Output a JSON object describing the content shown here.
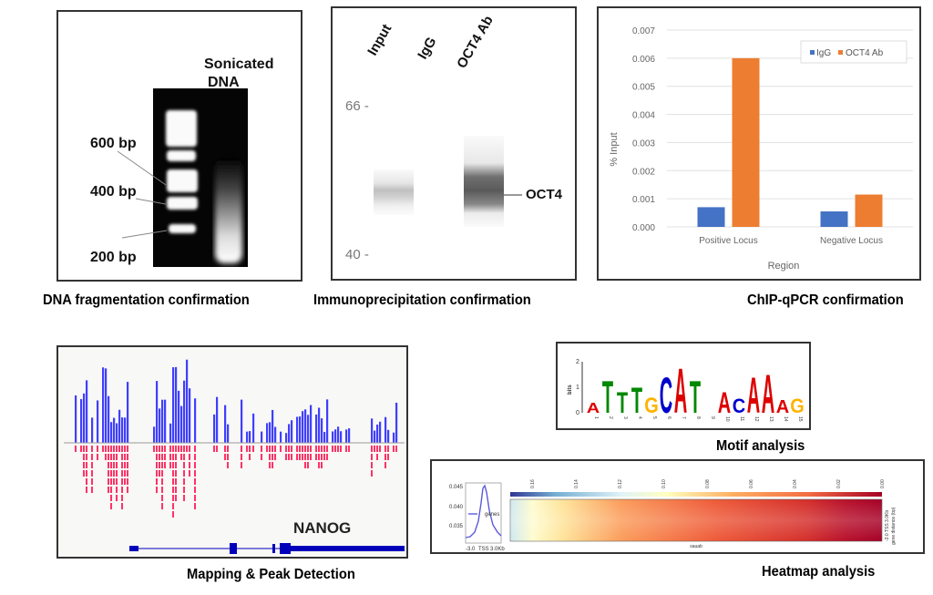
{
  "panels": {
    "dna_fragmentation": {
      "caption": "DNA fragmentation confirmation",
      "lane_label_line1": "Sonicated",
      "lane_label_line2": "DNA",
      "markers": [
        "600 bp",
        "400 bp",
        "200 bp"
      ]
    },
    "immunoprecipitation": {
      "caption": "Immunoprecipitation confirmation",
      "lanes": [
        "Input",
        "IgG",
        "OCT4 Ab"
      ],
      "mw_markers": [
        "66",
        "40"
      ],
      "band_label": "OCT4"
    },
    "chip_qpcr": {
      "caption": "ChIP-qPCR confirmation"
    },
    "mapping": {
      "caption": "Mapping & Peak Detection",
      "gene_label": "NANOG"
    },
    "motif": {
      "caption": "Motif analysis",
      "y_label": "bits",
      "y_ticks": [
        "0",
        "1",
        "2"
      ],
      "positions": [
        "1",
        "2",
        "3",
        "4",
        "5",
        "6",
        "7",
        "8",
        "9",
        "10",
        "11",
        "12",
        "13",
        "14",
        "15"
      ],
      "consensus": [
        {
          "letter": "A",
          "height": 0.4
        },
        {
          "letter": "T",
          "height": 1.25
        },
        {
          "letter": "T",
          "height": 0.8
        },
        {
          "letter": "T",
          "height": 1.0
        },
        {
          "letter": "G",
          "height": 0.6
        },
        {
          "letter": "C",
          "height": 1.4
        },
        {
          "letter": "A",
          "height": 1.75
        },
        {
          "letter": "T",
          "height": 1.25
        },
        {
          "letter": "",
          "height": 0.1
        },
        {
          "letter": "A",
          "height": 0.8
        },
        {
          "letter": "C",
          "height": 0.55
        },
        {
          "letter": "A",
          "height": 1.4
        },
        {
          "letter": "A",
          "height": 1.5
        },
        {
          "letter": "A",
          "height": 0.5
        },
        {
          "letter": "G",
          "height": 0.55
        }
      ]
    },
    "heatmap": {
      "caption": "Heatmap analysis",
      "profile_ticks": [
        "0.045",
        "0.040",
        "0.035"
      ],
      "profile_x_labels": [
        "-3.0",
        "TSS",
        "3.0Kb"
      ],
      "profile_legend": "genes",
      "colorbar_ticks": [
        "0.16",
        "0.14",
        "0.12",
        "0.10",
        "0.08",
        "0.06",
        "0.04",
        "0.02",
        "0.00"
      ],
      "x_label": "sauab",
      "right_labels": [
        "-3.0",
        "TSS",
        "3.0Kb"
      ],
      "right_axis_label": "gene distance (bp)"
    }
  },
  "colors": {
    "igg": "#4472c4",
    "oct4": "#ed7d31",
    "forward_reads": "#1f1fff",
    "reverse_reads": "#ff3366",
    "gene_track": "#0000bb"
  },
  "chart_data": {
    "type": "bar",
    "title": "",
    "categories": [
      "Positive Locus",
      "Negative Locus"
    ],
    "series": [
      {
        "name": "IgG",
        "values": [
          0.0007,
          0.00055
        ]
      },
      {
        "name": "OCT4 Ab",
        "values": [
          0.006,
          0.00115
        ]
      }
    ],
    "xlabel": "Region",
    "ylabel": "% Input",
    "ylim": [
      0,
      0.007
    ],
    "y_ticks": [
      "0.000",
      "0.001",
      "0.002",
      "0.003",
      "0.004",
      "0.005",
      "0.006",
      "0.007"
    ],
    "grid": true,
    "legend": "top-right"
  }
}
